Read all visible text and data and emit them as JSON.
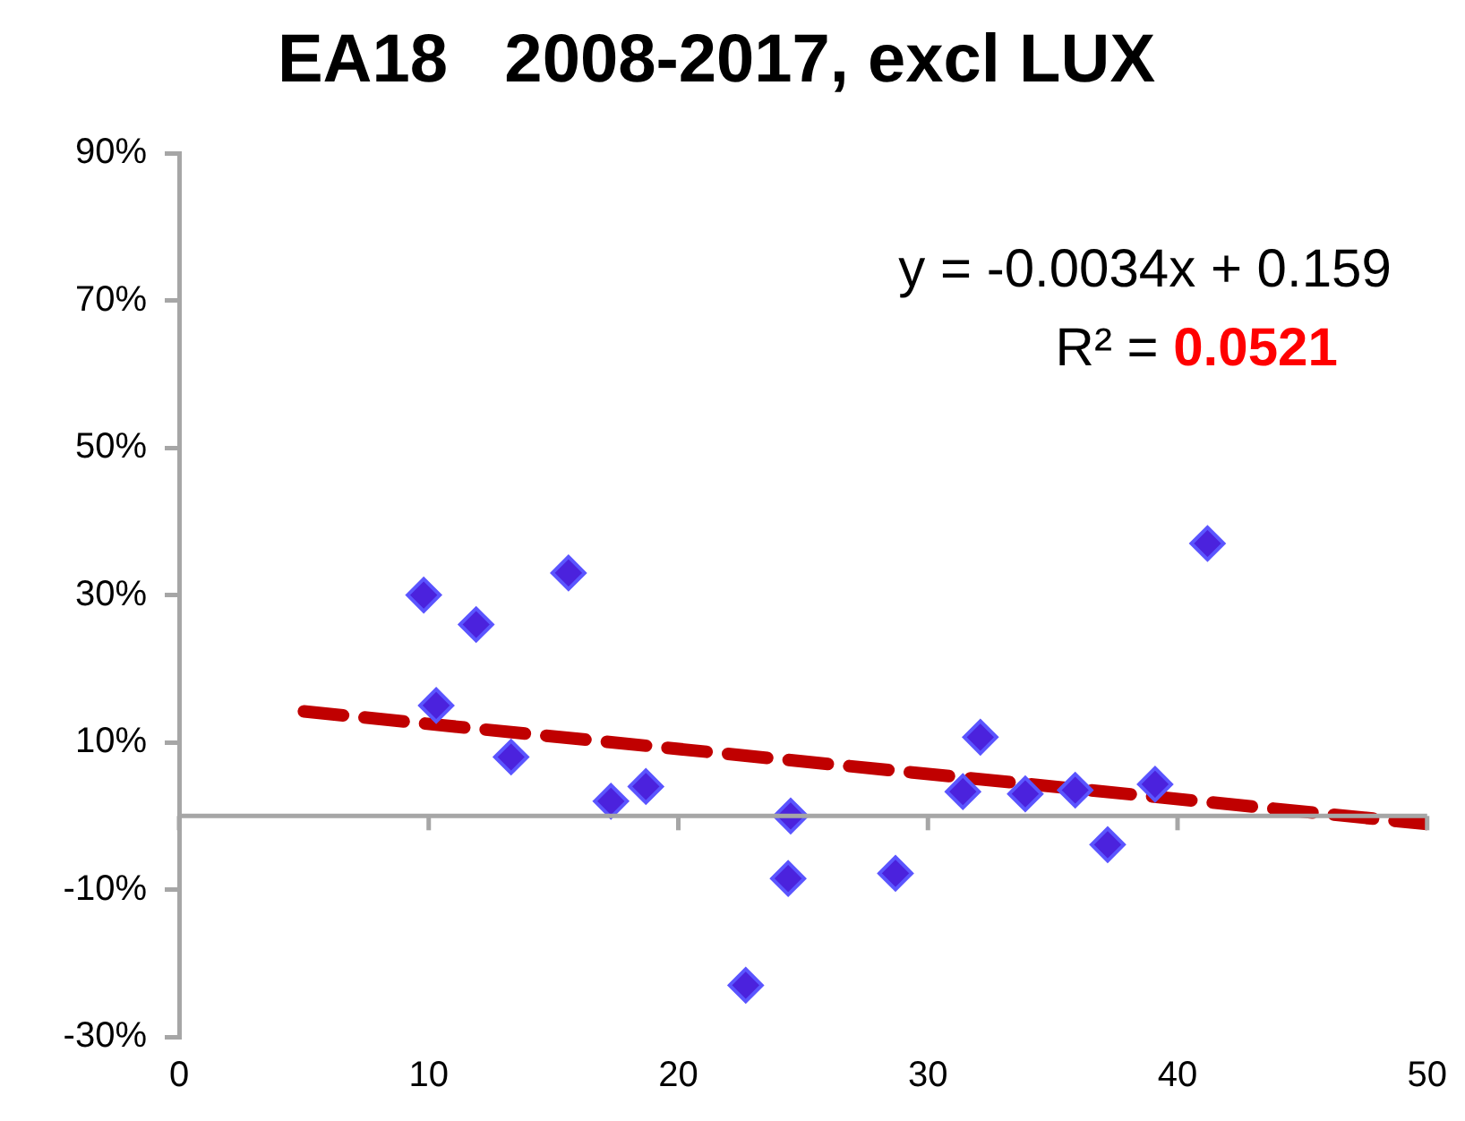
{
  "chart_data": {
    "type": "scatter",
    "title": "EA18   2008-2017, excl LUX",
    "xlim": [
      0,
      50
    ],
    "xticks": [
      0,
      10,
      20,
      30,
      40,
      50
    ],
    "ylim": [
      -0.3,
      0.9
    ],
    "yticks": [
      {
        "value": -0.3,
        "label": "-30%"
      },
      {
        "value": -0.1,
        "label": "-10%"
      },
      {
        "value": 0.1,
        "label": "10%"
      },
      {
        "value": 0.3,
        "label": "30%"
      },
      {
        "value": 0.5,
        "label": "50%"
      },
      {
        "value": 0.7,
        "label": "70%"
      },
      {
        "value": 0.9,
        "label": "90%"
      }
    ],
    "grid": false,
    "legend": false,
    "series": [
      {
        "type": "scatter",
        "color": "#4b22dd",
        "marker": "diamond",
        "x": [
          9.8,
          10.3,
          11.9,
          13.3,
          15.6,
          17.3,
          18.7,
          22.7,
          24.4,
          24.5,
          28.7,
          31.4,
          32.1,
          33.9,
          35.9,
          37.2,
          39.1,
          41.2
        ],
        "values": [
          0.3,
          0.15,
          0.26,
          0.08,
          0.33,
          0.02,
          0.04,
          -0.23,
          -0.085,
          0.0,
          -0.078,
          0.033,
          0.107,
          0.03,
          0.035,
          -0.039,
          0.043,
          0.37
        ]
      },
      {
        "type": "line",
        "color": "#c00000",
        "marker": "none",
        "line_style": "dashed",
        "x": [
          5,
          50
        ],
        "values": [
          0.142,
          -0.011
        ]
      }
    ],
    "annotations": [
      {
        "text": "y = -0.0034x + 0.159"
      },
      {
        "text": "R² = 0.0521"
      }
    ]
  }
}
